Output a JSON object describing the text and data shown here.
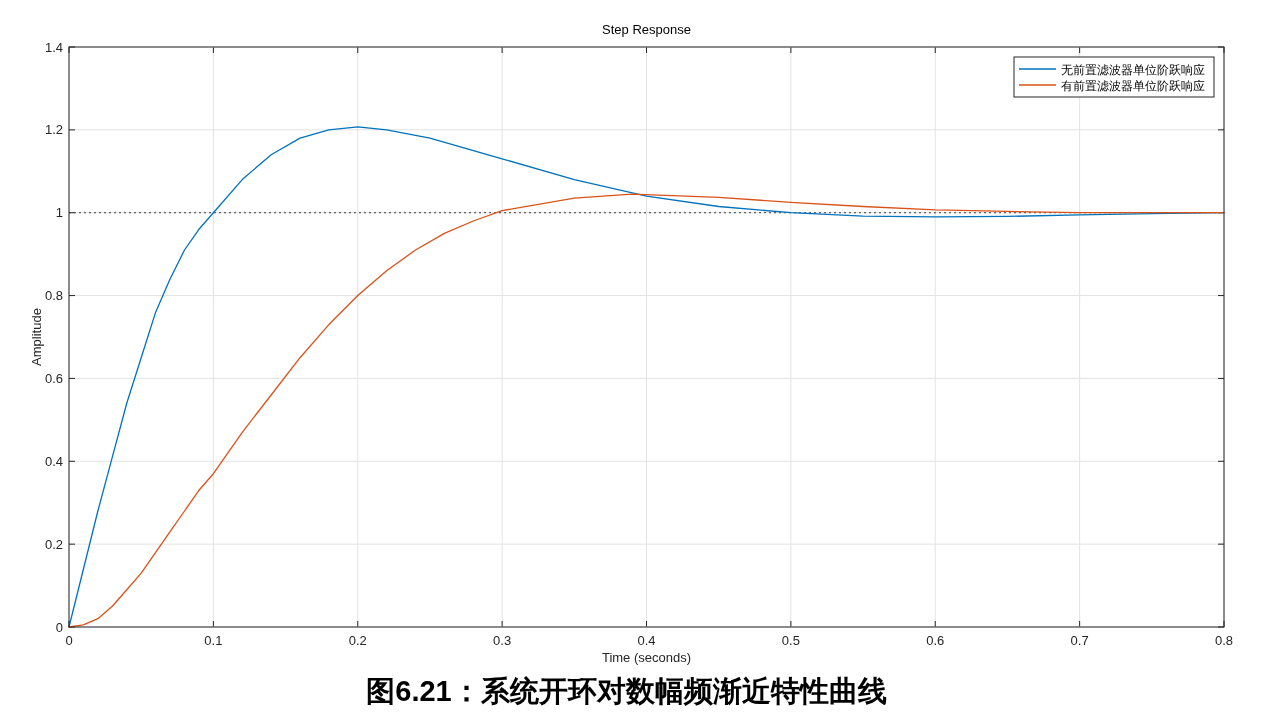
{
  "chart_data": {
    "type": "line",
    "title": "Step Response",
    "xlabel": "Time (seconds)",
    "ylabel": "Amplitude",
    "annotations": [
      "图6.21：系统开环对数幅频渐近特性曲线"
    ],
    "series": [
      {
        "name": "无前置滤波器单位阶跃响应",
        "color": "#0072bd",
        "x": [
          0,
          0.01,
          0.02,
          0.03,
          0.04,
          0.05,
          0.06,
          0.07,
          0.08,
          0.09,
          0.1,
          0.12,
          0.14,
          0.16,
          0.18,
          0.2,
          0.22,
          0.25,
          0.3,
          0.35,
          0.4,
          0.45,
          0.5,
          0.55,
          0.6,
          0.65,
          0.7,
          0.75,
          0.8
        ],
        "values": [
          0,
          0.14,
          0.28,
          0.41,
          0.54,
          0.65,
          0.76,
          0.84,
          0.91,
          0.96,
          1.0,
          1.08,
          1.14,
          1.18,
          1.2,
          1.207,
          1.2,
          1.18,
          1.13,
          1.08,
          1.04,
          1.015,
          1.0,
          0.992,
          0.99,
          0.991,
          0.995,
          0.998,
          1.0
        ]
      },
      {
        "name": "有前置滤波器单位阶跃响应",
        "color": "#d95319",
        "x": [
          0,
          0.01,
          0.02,
          0.03,
          0.04,
          0.05,
          0.06,
          0.07,
          0.08,
          0.09,
          0.1,
          0.12,
          0.14,
          0.16,
          0.18,
          0.2,
          0.22,
          0.24,
          0.26,
          0.28,
          0.3,
          0.35,
          0.39,
          0.45,
          0.5,
          0.55,
          0.6,
          0.65,
          0.7,
          0.8
        ],
        "values": [
          0,
          0.005,
          0.02,
          0.05,
          0.09,
          0.13,
          0.18,
          0.23,
          0.28,
          0.33,
          0.37,
          0.47,
          0.56,
          0.65,
          0.73,
          0.8,
          0.86,
          0.91,
          0.95,
          0.98,
          1.005,
          1.035,
          1.045,
          1.037,
          1.025,
          1.015,
          1.007,
          1.003,
          1.0,
          1.0
        ]
      }
    ],
    "xlim": [
      0,
      0.8
    ],
    "xticks": [
      0,
      0.1,
      0.2,
      0.3,
      0.4,
      0.5,
      0.6,
      0.7,
      0.8
    ],
    "ylim": [
      0,
      1.4
    ],
    "yticks": [
      0,
      0.2,
      0.4,
      0.6,
      0.8,
      1,
      1.2,
      1.4
    ],
    "ref_lines": [
      {
        "axis": "y",
        "value": 1,
        "color": "#404040",
        "line_style": "dotted"
      }
    ],
    "grid": true,
    "legend": "top right",
    "marker": "none",
    "line_style": "solid"
  }
}
